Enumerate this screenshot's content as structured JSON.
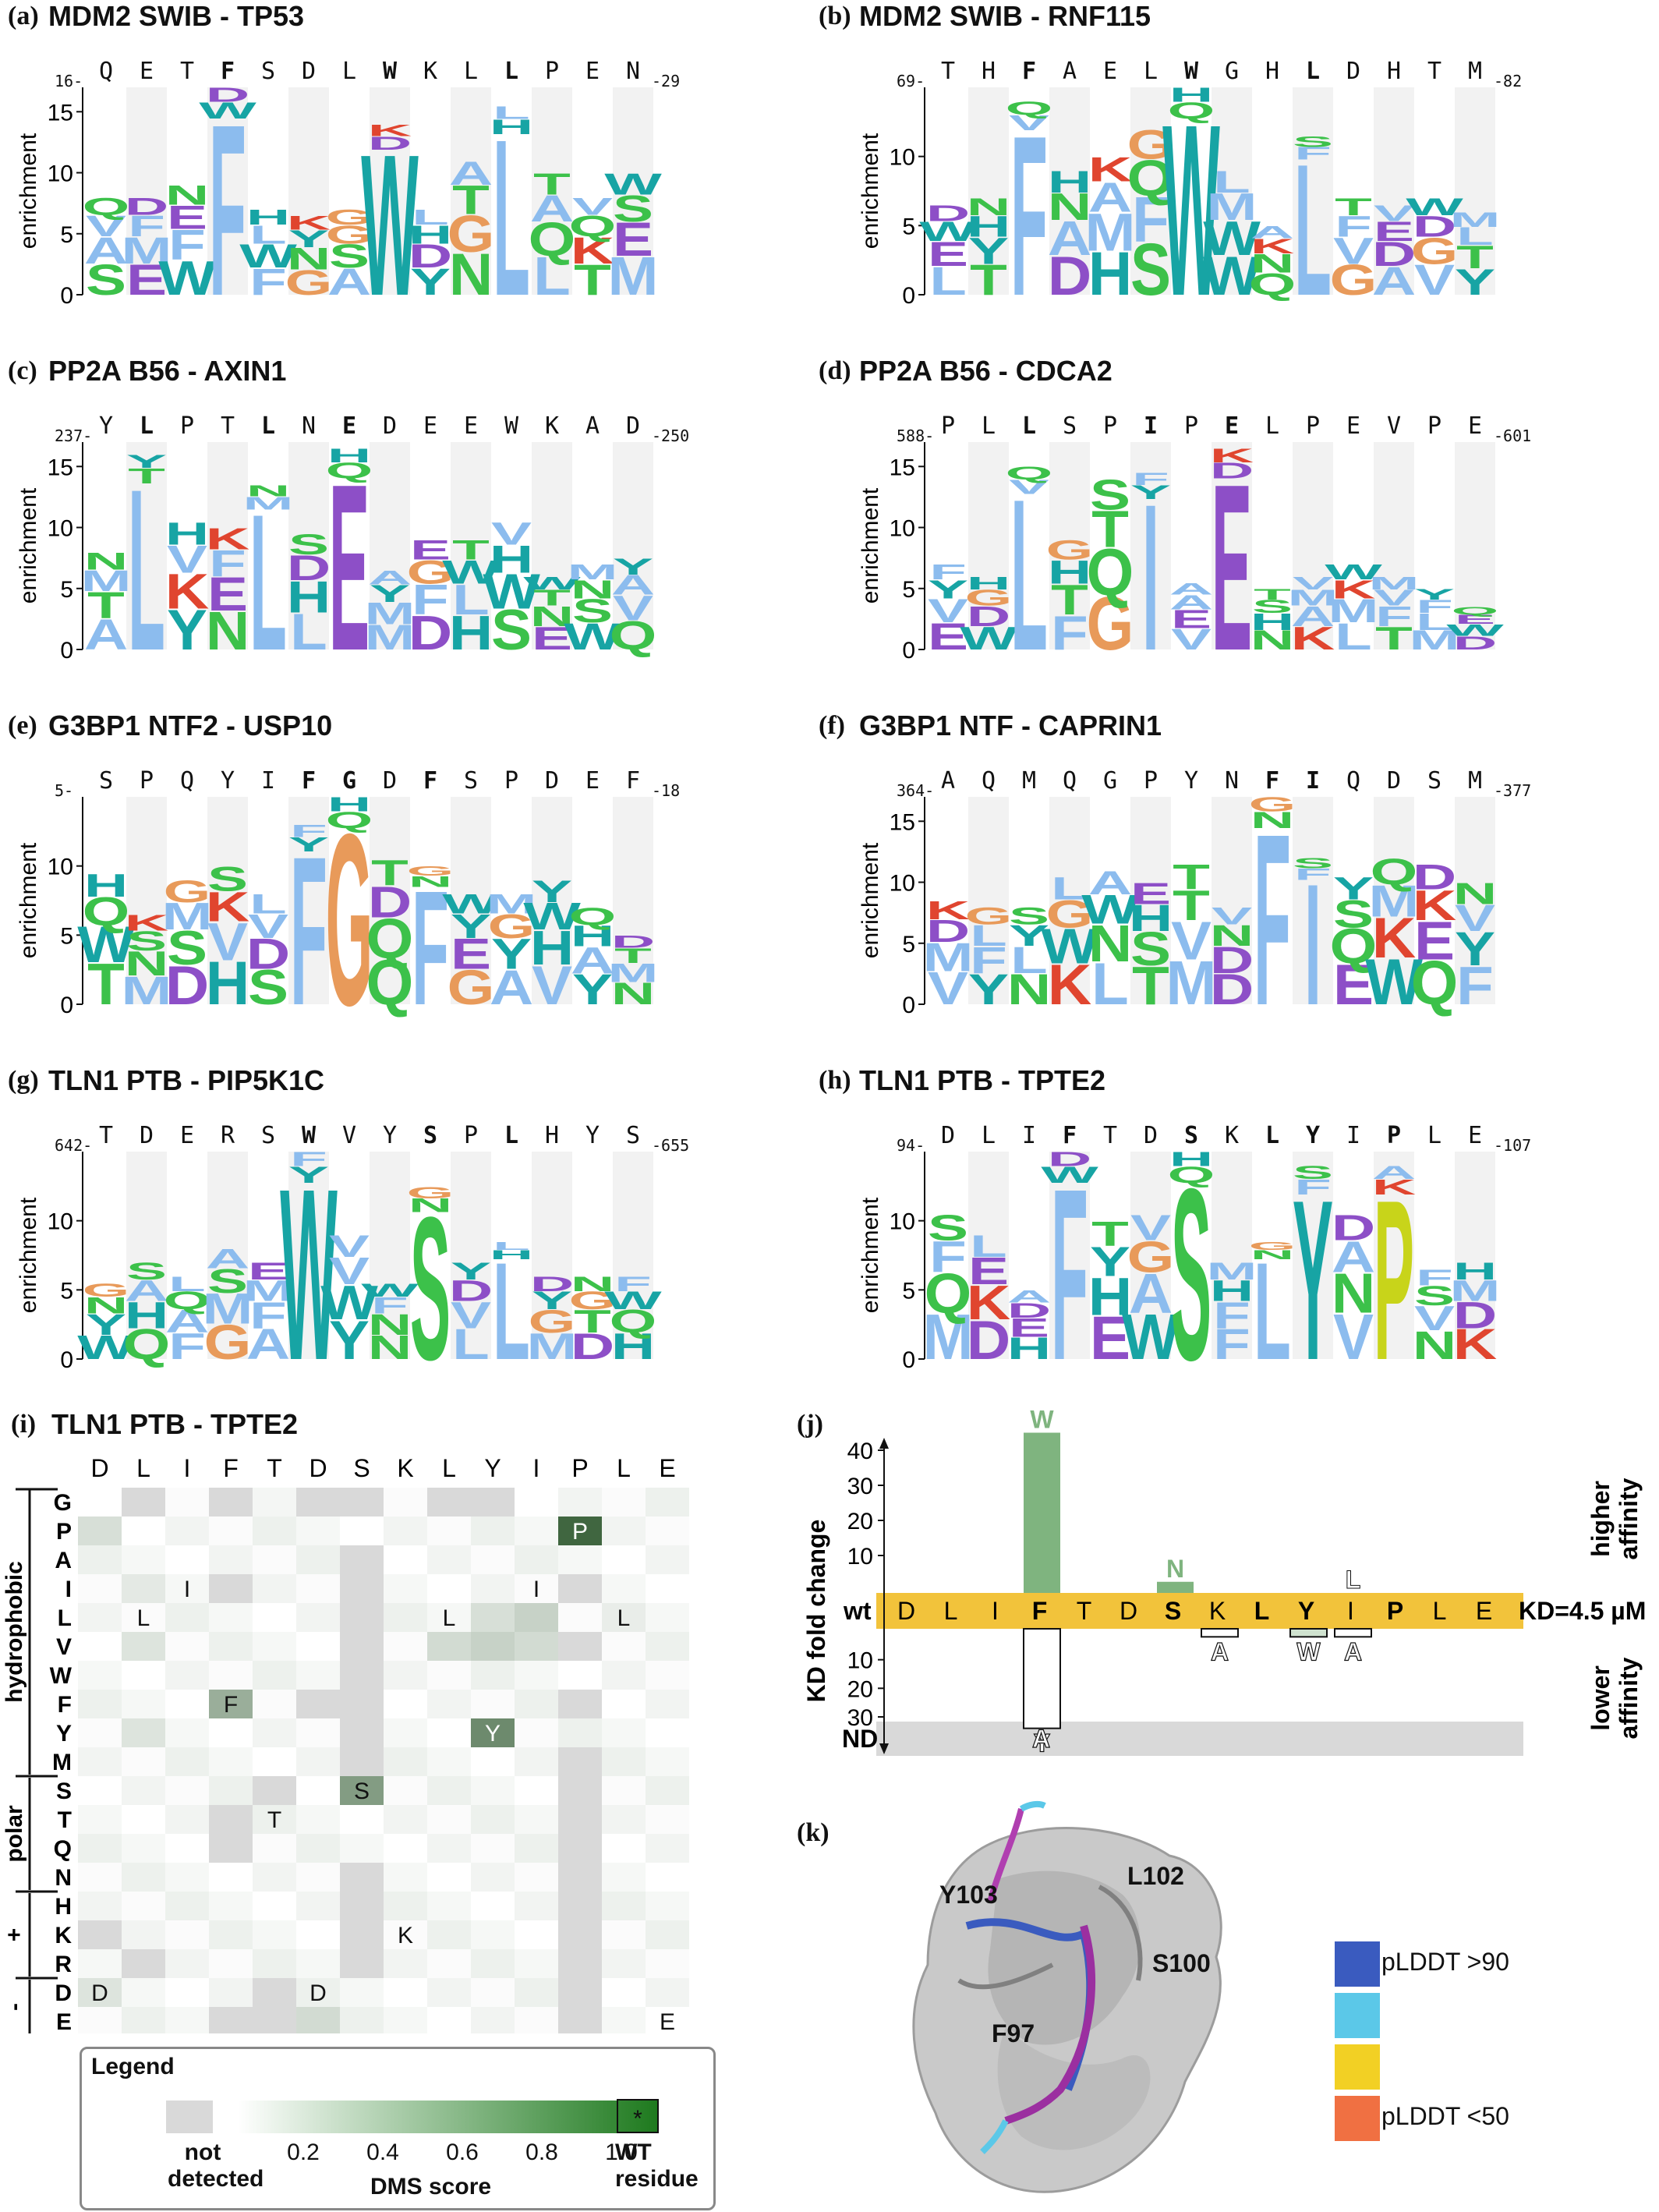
{
  "logo_panels": [
    {
      "id": "a",
      "label": "(a)",
      "title": "MDM2 SWIB - TP53",
      "start": "16",
      "end": "29",
      "seq": [
        "Q",
        "E",
        "T",
        "F",
        "S",
        "D",
        "L",
        "W",
        "K",
        "L",
        "L",
        "P",
        "E",
        "N"
      ],
      "bold": [
        3,
        7,
        10
      ],
      "yticks": [
        "0",
        "5",
        "10",
        "15"
      ],
      "ymax": 17,
      "tops": [
        8,
        8,
        9,
        17,
        7,
        6.5,
        7,
        14,
        7,
        11,
        15.5,
        10,
        8,
        10
      ]
    },
    {
      "id": "b",
      "label": "(b)",
      "title": "MDM2 SWIB - RNF115",
      "start": "69",
      "end": "82",
      "seq": [
        "T",
        "H",
        "F",
        "A",
        "E",
        "L",
        "W",
        "G",
        "H",
        "L",
        "D",
        "H",
        "T",
        "M"
      ],
      "bold": [
        2,
        6,
        9
      ],
      "yticks": [
        "0",
        "5",
        "10"
      ],
      "ymax": 15,
      "tops": [
        6.5,
        7,
        14,
        9,
        10,
        12,
        15,
        9,
        5,
        11.5,
        7,
        6.5,
        7,
        6
      ]
    },
    {
      "id": "c",
      "label": "(c)",
      "title": "PP2A B56 - AXIN1",
      "start": "237",
      "end": "250",
      "seq": [
        "Y",
        "L",
        "P",
        "T",
        "L",
        "N",
        "E",
        "D",
        "E",
        "E",
        "W",
        "K",
        "A",
        "D"
      ],
      "bold": [
        1,
        4,
        6
      ],
      "yticks": [
        "0",
        "5",
        "10",
        "15"
      ],
      "ymax": 17,
      "tops": [
        8,
        16,
        10.5,
        10,
        13.5,
        9.5,
        16.5,
        6.5,
        9,
        9,
        10.5,
        6,
        7,
        7.5
      ]
    },
    {
      "id": "d",
      "label": "(d)",
      "title": "PP2A B56 - CDCA2",
      "start": "588",
      "end": "601",
      "seq": [
        "P",
        "L",
        "L",
        "S",
        "P",
        "I",
        "P",
        "E",
        "L",
        "P",
        "E",
        "V",
        "P",
        "E"
      ],
      "bold": [
        2,
        5,
        7
      ],
      "yticks": [
        "0",
        "5",
        "10",
        "15"
      ],
      "ymax": 17,
      "tops": [
        7,
        6,
        15,
        9,
        14,
        14.5,
        5.5,
        16.5,
        5,
        6,
        7,
        6,
        5,
        3.5
      ]
    },
    {
      "id": "e",
      "label": "(e)",
      "title": "G3BP1 NTF2 - USP10",
      "start": "5",
      "end": "18",
      "seq": [
        "S",
        "P",
        "Q",
        "Y",
        "I",
        "F",
        "G",
        "D",
        "F",
        "S",
        "P",
        "D",
        "E",
        "F"
      ],
      "bold": [
        5,
        6,
        8
      ],
      "yticks": [
        "0",
        "5",
        "10"
      ],
      "ymax": 15,
      "tops": [
        9.5,
        6.5,
        9,
        10,
        8,
        13,
        15,
        10.5,
        10,
        8,
        8,
        9,
        7,
        5
      ]
    },
    {
      "id": "f",
      "label": "(f)",
      "title": "G3BP1 NTF - CAPRIN1",
      "start": "364",
      "end": "377",
      "seq": [
        "A",
        "Q",
        "M",
        "Q",
        "G",
        "P",
        "Y",
        "N",
        "F",
        "I",
        "Q",
        "D",
        "S",
        "M"
      ],
      "bold": [
        8,
        9
      ],
      "yticks": [
        "0",
        "5",
        "10",
        "15"
      ],
      "ymax": 17,
      "tops": [
        8.5,
        8,
        8,
        10.5,
        11,
        10,
        11.5,
        8,
        17,
        12,
        10.5,
        12,
        11.5,
        10
      ]
    },
    {
      "id": "g",
      "label": "(g)",
      "title": "TLN1 PTB - PIP5K1C",
      "start": "642",
      "end": "655",
      "seq": [
        "T",
        "D",
        "E",
        "R",
        "S",
        "W",
        "V",
        "Y",
        "S",
        "P",
        "L",
        "H",
        "Y",
        "S"
      ],
      "bold": [
        5,
        8,
        10
      ],
      "yticks": [
        "0",
        "5",
        "10"
      ],
      "ymax": 15,
      "tops": [
        5.5,
        7,
        6,
        8,
        7,
        15,
        9,
        5.5,
        12.5,
        7,
        8.5,
        6,
        6,
        6
      ]
    },
    {
      "id": "h",
      "label": "(h)",
      "title": "TLN1 PTB - TPTE2",
      "start": "94",
      "end": "107",
      "seq": [
        "D",
        "L",
        "I",
        "F",
        "T",
        "D",
        "S",
        "K",
        "L",
        "Y",
        "I",
        "P",
        "L",
        "E"
      ],
      "bold": [
        3,
        6,
        8,
        9,
        11
      ],
      "yticks": [
        "0",
        "5",
        "10"
      ],
      "ymax": 15,
      "tops": [
        10.5,
        9,
        5,
        15,
        10,
        10.5,
        15,
        7,
        8.5,
        14,
        10.5,
        14,
        6.5,
        7
      ]
    }
  ],
  "axis_label": "enrichment",
  "heatmap": {
    "label": "(i)",
    "title": "TLN1 PTB - TPTE2",
    "columns": [
      "D",
      "L",
      "I",
      "F",
      "T",
      "D",
      "S",
      "K",
      "L",
      "Y",
      "I",
      "P",
      "L",
      "E"
    ],
    "rows": [
      "G",
      "P",
      "A",
      "I",
      "L",
      "V",
      "W",
      "F",
      "Y",
      "M",
      "S",
      "T",
      "Q",
      "N",
      "H",
      "K",
      "R",
      "D",
      "E"
    ],
    "groups": [
      {
        "name": "hydrophobic",
        "from": 0,
        "to": 9
      },
      {
        "name": "polar",
        "from": 10,
        "to": 13
      },
      {
        "name": "+",
        "from": 14,
        "to": 16
      },
      {
        "name": "-",
        "from": 17,
        "to": 18
      }
    ],
    "wt_marks": [
      {
        "row": 1,
        "col": 11,
        "text": "P"
      },
      {
        "row": 3,
        "col": 2,
        "text": "I"
      },
      {
        "row": 3,
        "col": 10,
        "text": "I"
      },
      {
        "row": 4,
        "col": 1,
        "text": "L"
      },
      {
        "row": 4,
        "col": 8,
        "text": "L"
      },
      {
        "row": 4,
        "col": 12,
        "text": "L"
      },
      {
        "row": 7,
        "col": 3,
        "text": "F"
      },
      {
        "row": 8,
        "col": 9,
        "text": "Y"
      },
      {
        "row": 10,
        "col": 6,
        "text": "S"
      },
      {
        "row": 11,
        "col": 4,
        "text": "T"
      },
      {
        "row": 15,
        "col": 7,
        "text": "K"
      },
      {
        "row": 17,
        "col": 0,
        "text": "D"
      },
      {
        "row": 17,
        "col": 5,
        "text": "D"
      },
      {
        "row": 18,
        "col": 13,
        "text": "E"
      }
    ]
  },
  "legend": {
    "title": "Legend",
    "not_detected": "not detected",
    "ticks": [
      "0.2",
      "0.4",
      "0.6",
      "0.8",
      "1.0"
    ],
    "scale_label": "DMS score",
    "wt_symbol": "*",
    "wt_label": "WT residue",
    "accent": "#1e7a1e"
  },
  "kd_panel": {
    "label": "(j)",
    "ylabel": "KD fold change",
    "wt_label": "wt",
    "kd_text": "KD=4.5 µM",
    "seq": [
      "D",
      "L",
      "I",
      "F",
      "T",
      "D",
      "S",
      "K",
      "L",
      "Y",
      "I",
      "P",
      "L",
      "E"
    ],
    "bold": [
      3,
      6,
      8,
      9,
      11
    ],
    "higher_ticks": [
      "10",
      "20",
      "30",
      "40"
    ],
    "lower_ticks": [
      "10",
      "20",
      "30"
    ],
    "higher": "higher affinity",
    "lower": "lower affinity",
    "nd": "ND",
    "up_bars": [
      {
        "pos": 3,
        "aa": "W",
        "fold": 45
      },
      {
        "pos": 6,
        "aa": "N",
        "fold": 2.5
      },
      {
        "pos": 10,
        "aa": "L",
        "fold": 0
      }
    ],
    "down_bars": [
      {
        "pos": 3,
        "aa": "Y",
        "fold": 34
      },
      {
        "pos": 7,
        "aa": "A",
        "fold": 2
      },
      {
        "pos": 9,
        "aa": "W",
        "fold": 2
      },
      {
        "pos": 10,
        "aa": "A",
        "fold": 2
      }
    ],
    "nd_marks": [
      {
        "pos": 3,
        "aa": "A"
      }
    ],
    "colors": {
      "wt_band": "#f2c33b",
      "up": "#7fb47f",
      "nd": "#d9d9d9"
    }
  },
  "structure": {
    "label": "(k)",
    "residues": [
      "Y103",
      "L102",
      "S100",
      "F97"
    ],
    "plddt": [
      {
        "label": "pLDDT >90",
        "color": "#3a5bbf"
      },
      {
        "label": "",
        "color": "#5bc8e8"
      },
      {
        "label": "",
        "color": "#f2d024"
      },
      {
        "label": "pLDDT <50",
        "color": "#f07042"
      }
    ]
  }
}
